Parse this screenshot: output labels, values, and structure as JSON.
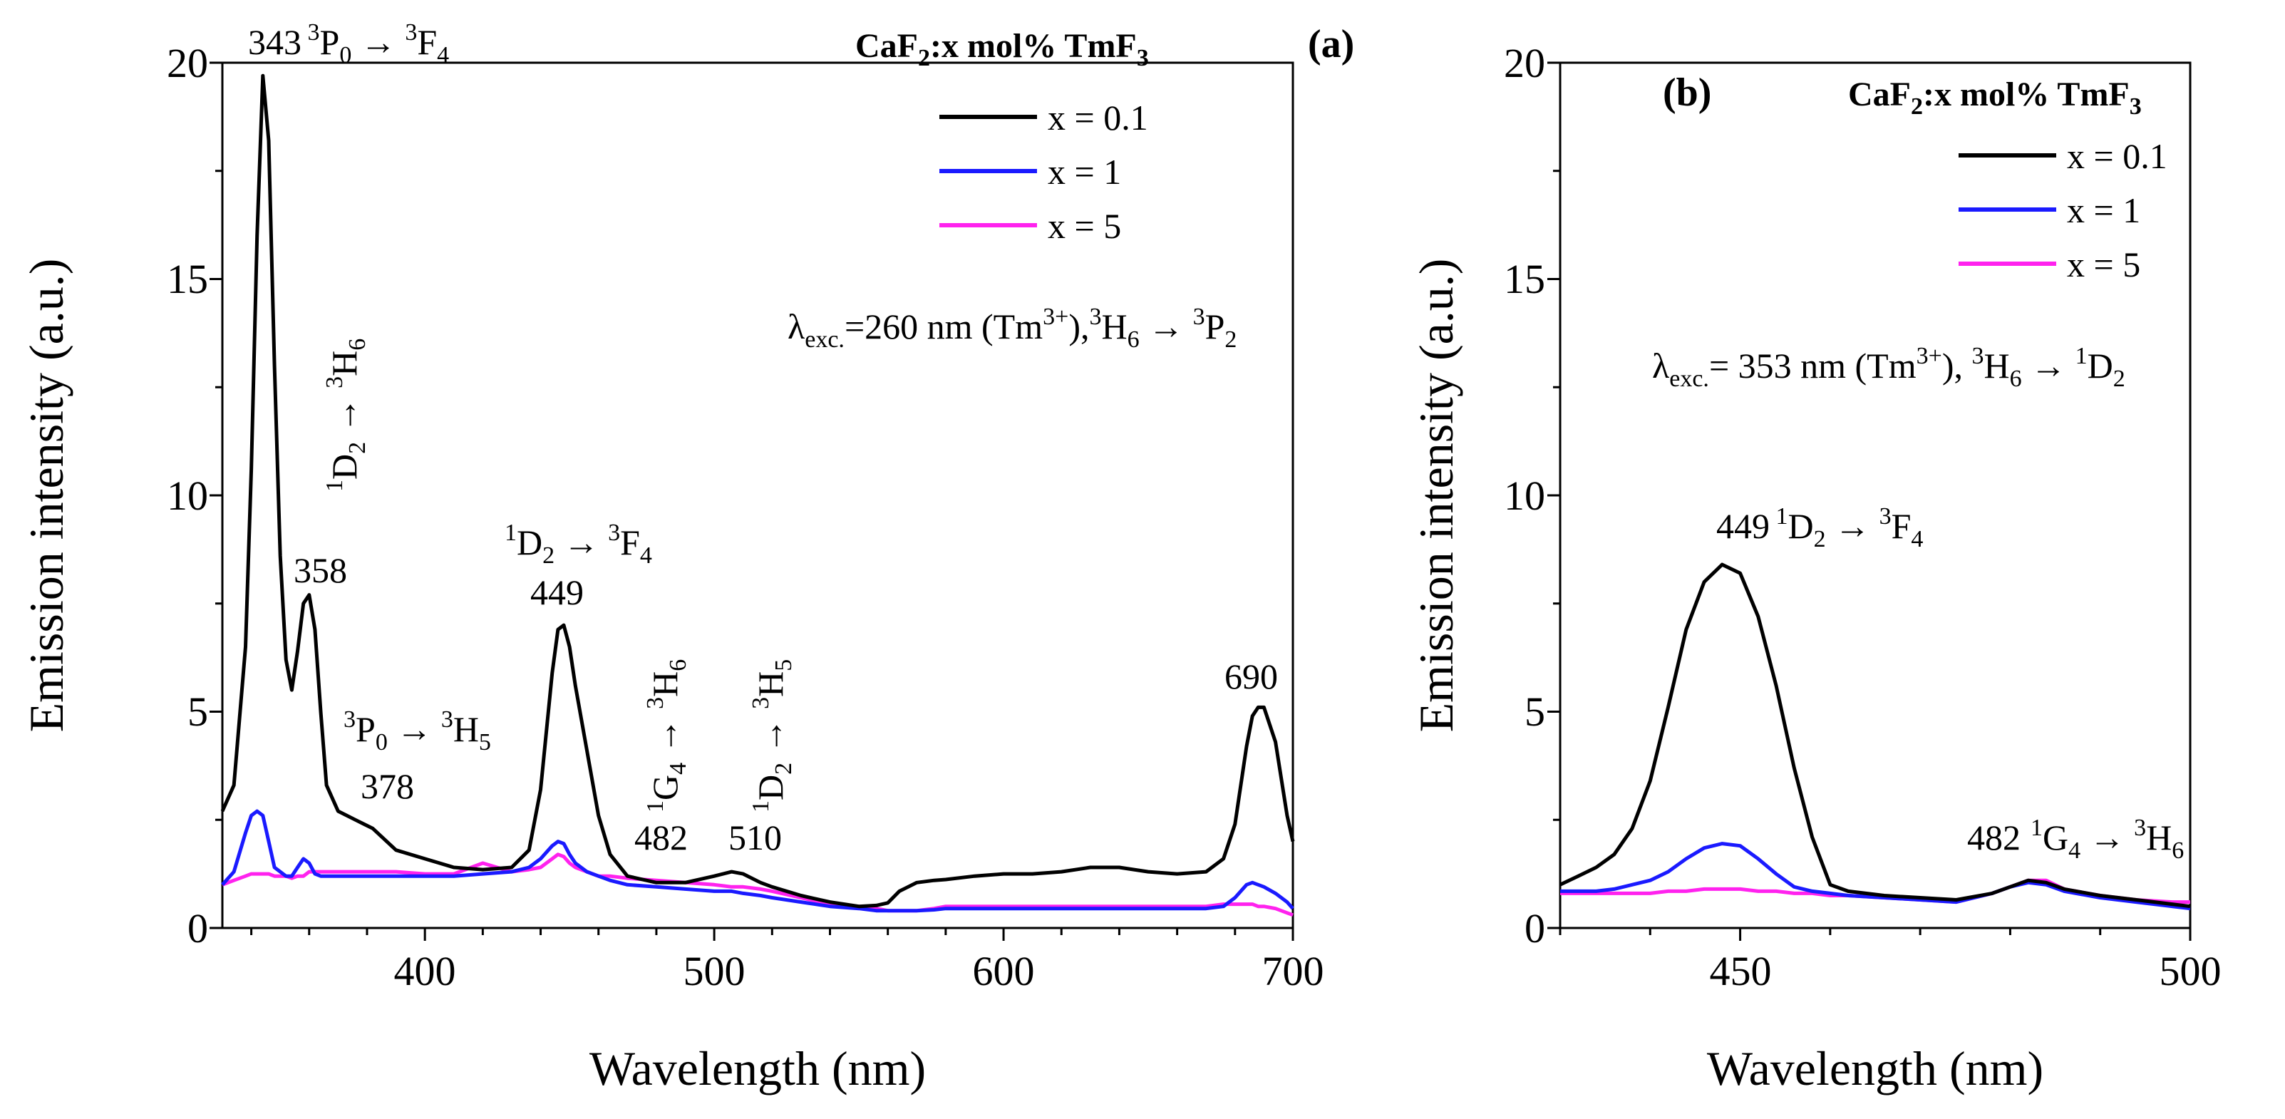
{
  "chart_data": [
    {
      "type": "line",
      "panel_label": "(a)",
      "xlabel": "Wavelength (nm)",
      "ylabel": "Emission intensity (a.u.)",
      "xlim": [
        330,
        700
      ],
      "ylim": [
        0,
        20
      ],
      "xticks": [
        400,
        500,
        600,
        700
      ],
      "yticks": [
        0,
        5,
        10,
        15,
        20
      ],
      "legend_title": "CaF2:x mol% TmF3",
      "excitation": "λexc.=260 nm (Tm3+),3H6 → 3P2",
      "x": [
        330,
        334,
        338,
        340,
        342,
        344,
        346,
        348,
        350,
        352,
        354,
        356,
        358,
        360,
        362,
        364,
        366,
        370,
        376,
        382,
        390,
        400,
        410,
        420,
        430,
        436,
        440,
        444,
        446,
        448,
        450,
        452,
        456,
        460,
        464,
        470,
        480,
        490,
        500,
        506,
        510,
        516,
        520,
        530,
        540,
        550,
        556,
        560,
        564,
        570,
        576,
        580,
        590,
        600,
        610,
        620,
        630,
        640,
        650,
        660,
        670,
        676,
        680,
        684,
        686,
        688,
        690,
        694,
        698,
        700
      ],
      "series": [
        {
          "name": "x = 0.1",
          "color": "#000000",
          "values": [
            2.7,
            3.3,
            6.5,
            10.6,
            16.0,
            19.7,
            18.2,
            13.0,
            8.6,
            6.2,
            5.5,
            6.4,
            7.5,
            7.7,
            6.9,
            5.0,
            3.3,
            2.7,
            2.5,
            2.3,
            1.8,
            1.6,
            1.4,
            1.35,
            1.4,
            1.8,
            3.2,
            5.9,
            6.9,
            7.0,
            6.5,
            5.6,
            4.1,
            2.6,
            1.7,
            1.2,
            1.05,
            1.05,
            1.2,
            1.3,
            1.25,
            1.05,
            0.95,
            0.75,
            0.6,
            0.5,
            0.52,
            0.58,
            0.85,
            1.05,
            1.1,
            1.12,
            1.2,
            1.25,
            1.25,
            1.3,
            1.4,
            1.4,
            1.3,
            1.25,
            1.3,
            1.6,
            2.4,
            4.2,
            4.9,
            5.1,
            5.1,
            4.3,
            2.6,
            2.0
          ]
        },
        {
          "name": "x = 1",
          "color": "#1a1aff",
          "values": [
            1.0,
            1.3,
            2.2,
            2.6,
            2.7,
            2.6,
            2.0,
            1.4,
            1.3,
            1.2,
            1.2,
            1.4,
            1.6,
            1.5,
            1.25,
            1.2,
            1.2,
            1.2,
            1.2,
            1.2,
            1.2,
            1.2,
            1.2,
            1.25,
            1.3,
            1.4,
            1.6,
            1.9,
            2.0,
            1.95,
            1.7,
            1.5,
            1.3,
            1.2,
            1.1,
            1.0,
            0.95,
            0.9,
            0.85,
            0.85,
            0.8,
            0.75,
            0.7,
            0.6,
            0.5,
            0.45,
            0.4,
            0.4,
            0.4,
            0.4,
            0.42,
            0.45,
            0.45,
            0.45,
            0.45,
            0.45,
            0.45,
            0.45,
            0.45,
            0.45,
            0.45,
            0.5,
            0.7,
            1.0,
            1.05,
            1.0,
            0.95,
            0.8,
            0.6,
            0.45
          ]
        },
        {
          "name": "x = 5",
          "color": "#ff22ee",
          "values": [
            1.0,
            1.1,
            1.2,
            1.25,
            1.25,
            1.25,
            1.25,
            1.2,
            1.2,
            1.2,
            1.15,
            1.2,
            1.2,
            1.3,
            1.3,
            1.3,
            1.3,
            1.3,
            1.3,
            1.3,
            1.3,
            1.25,
            1.25,
            1.5,
            1.3,
            1.35,
            1.4,
            1.6,
            1.7,
            1.65,
            1.5,
            1.4,
            1.3,
            1.2,
            1.2,
            1.15,
            1.1,
            1.05,
            1.0,
            0.95,
            0.95,
            0.9,
            0.85,
            0.7,
            0.55,
            0.5,
            0.45,
            0.4,
            0.4,
            0.4,
            0.45,
            0.5,
            0.5,
            0.5,
            0.5,
            0.5,
            0.5,
            0.5,
            0.5,
            0.5,
            0.5,
            0.55,
            0.55,
            0.55,
            0.55,
            0.5,
            0.5,
            0.45,
            0.35,
            0.3
          ]
        }
      ],
      "annotations": [
        {
          "text": "343",
          "label": "3P0 → 3F4"
        },
        {
          "text": "358",
          "label": "1D2 → 3H6"
        },
        {
          "text": "378",
          "label": "3P0 → 3H5"
        },
        {
          "text": "449",
          "label": "1D2 → 3F4"
        },
        {
          "text": "482",
          "label": "1G4 → 3H6"
        },
        {
          "text": "510",
          "label": "1D2 → 3H5"
        },
        {
          "text": "690",
          "label": ""
        }
      ]
    },
    {
      "type": "line",
      "panel_label": "(b)",
      "xlabel": "Wavelength (nm)",
      "ylabel": "Emission intensity (a.u.)",
      "xlim": [
        430,
        500
      ],
      "ylim": [
        0,
        20
      ],
      "xticks": [
        450,
        500
      ],
      "yticks": [
        0,
        5,
        10,
        15,
        20
      ],
      "legend_title": "CaF2:x mol% TmF3",
      "excitation": "λexc.= 353 nm (Tm3+), 3H6 → 1D2",
      "x": [
        430,
        432,
        434,
        436,
        438,
        440,
        442,
        444,
        446,
        448,
        450,
        452,
        454,
        456,
        458,
        460,
        462,
        466,
        470,
        474,
        478,
        480,
        482,
        484,
        486,
        490,
        494,
        498,
        500
      ],
      "series": [
        {
          "name": "x = 0.1",
          "color": "#000000",
          "values": [
            1.0,
            1.2,
            1.4,
            1.7,
            2.3,
            3.4,
            5.1,
            6.9,
            8.0,
            8.4,
            8.2,
            7.2,
            5.6,
            3.7,
            2.1,
            1.0,
            0.85,
            0.75,
            0.7,
            0.65,
            0.8,
            0.95,
            1.1,
            1.05,
            0.9,
            0.75,
            0.65,
            0.55,
            0.5
          ]
        },
        {
          "name": "x = 1",
          "color": "#1a1aff",
          "values": [
            0.85,
            0.85,
            0.85,
            0.9,
            1.0,
            1.1,
            1.3,
            1.6,
            1.85,
            1.95,
            1.9,
            1.6,
            1.25,
            0.95,
            0.85,
            0.8,
            0.75,
            0.7,
            0.65,
            0.6,
            0.8,
            0.95,
            1.05,
            1.0,
            0.85,
            0.7,
            0.6,
            0.5,
            0.45
          ]
        },
        {
          "name": "x = 5",
          "color": "#ff22ee",
          "values": [
            0.8,
            0.8,
            0.8,
            0.8,
            0.8,
            0.8,
            0.85,
            0.85,
            0.9,
            0.9,
            0.9,
            0.85,
            0.85,
            0.8,
            0.8,
            0.75,
            0.75,
            0.7,
            0.65,
            0.6,
            0.8,
            0.95,
            1.1,
            1.1,
            0.9,
            0.75,
            0.65,
            0.6,
            0.6
          ]
        }
      ],
      "annotations": [
        {
          "text": "449",
          "label": "1D2 → 3F4"
        },
        {
          "text": "482",
          "label": "1G4 → 3H6"
        }
      ]
    }
  ],
  "labels": {
    "xa_ticks": [
      "400",
      "500",
      "600",
      "700"
    ],
    "xb_ticks": [
      "450",
      "500"
    ],
    "y_ticks": [
      "0",
      "5",
      "10",
      "15",
      "20"
    ]
  }
}
